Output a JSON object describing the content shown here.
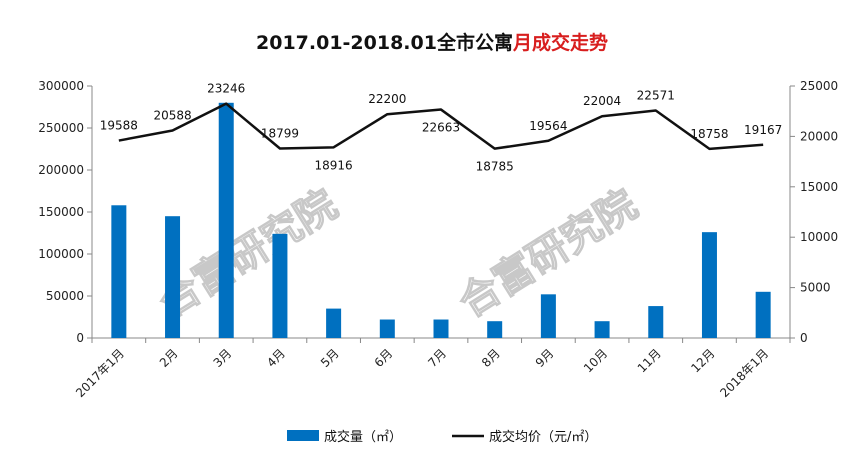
{
  "title": {
    "main": "2017.01-2018.01全市公寓",
    "highlight": "月成交走势",
    "main_color": "#111111",
    "highlight_color": "#d81e1e"
  },
  "watermark": "合富研究院",
  "colors": {
    "bar": "#0070c0",
    "line": "#111111",
    "axis": "#888888"
  },
  "chart_data": {
    "type": "bar",
    "categories": [
      "2017年1月",
      "2月",
      "3月",
      "4月",
      "5月",
      "6月",
      "7月",
      "8月",
      "9月",
      "10月",
      "11月",
      "12月",
      "2018年1月"
    ],
    "series": [
      {
        "name": "成交量（㎡）",
        "type": "bar",
        "axis": "left",
        "values": [
          158000,
          145000,
          280000,
          124000,
          35000,
          22000,
          22000,
          20000,
          52000,
          20000,
          38000,
          126000,
          55000
        ]
      },
      {
        "name": "成交均价（元/㎡）",
        "type": "line",
        "axis": "right",
        "values": [
          19588,
          20588,
          23246,
          18799,
          18916,
          22200,
          22663,
          18785,
          19564,
          22004,
          22571,
          18758,
          19167
        ],
        "labels": [
          "19588",
          "20588",
          "23246",
          "18799",
          "18916",
          "22200",
          "22663",
          "18785",
          "19564",
          "22004",
          "22571",
          "18758",
          "19167"
        ]
      }
    ],
    "y_left": {
      "min": 0,
      "max": 300000,
      "ticks": [
        "0",
        "50000",
        "100000",
        "150000",
        "200000",
        "250000",
        "300000"
      ]
    },
    "y_right": {
      "min": 0,
      "max": 25000,
      "ticks": [
        "0",
        "5000",
        "10000",
        "15000",
        "20000",
        "25000"
      ]
    },
    "grid": false,
    "legend": "bottom",
    "legend_entries": [
      {
        "label": "成交量（㎡）",
        "kind": "bar"
      },
      {
        "label": "成交均价（元/㎡）",
        "kind": "line"
      }
    ]
  }
}
